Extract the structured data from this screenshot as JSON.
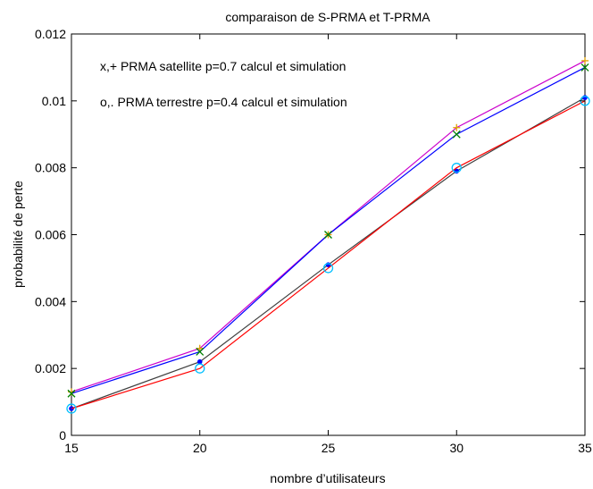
{
  "chart_data": {
    "type": "line",
    "title": "comparaison de S-PRMA et T-PRMA",
    "xlabel": "nombre d’utilisateurs",
    "ylabel": "probabilité de perte",
    "xlim": [
      15,
      35
    ],
    "ylim": [
      0,
      0.012
    ],
    "x_ticks": [
      15,
      20,
      25,
      30,
      35
    ],
    "x_tick_labels": [
      "15",
      "20",
      "25",
      "30",
      "35"
    ],
    "y_ticks": [
      0,
      0.002,
      0.004,
      0.006,
      0.008,
      0.01,
      0.012
    ],
    "y_tick_labels": [
      "0",
      "0.002",
      "0.004",
      "0.006",
      "0.008",
      "0.01",
      "0.012"
    ],
    "grid": false,
    "annotations": [
      "x,+ PRMA satellite p=0.7 calcul et simulation",
      "o,. PRMA terrestre p=0.4 calcul et simulation"
    ],
    "x": [
      15,
      20,
      25,
      30,
      35
    ],
    "series": [
      {
        "color": "#cc00cc",
        "marker": "+",
        "marker_color": "#e0a000",
        "values": [
          0.0013,
          0.0026,
          0.006,
          0.0092,
          0.0112
        ]
      },
      {
        "color": "#0000ff",
        "marker": "x",
        "marker_color": "#008000",
        "values": [
          0.00125,
          0.0025,
          0.006,
          0.009,
          0.011
        ]
      },
      {
        "color": "#404040",
        "marker": ".",
        "marker_color": "#0000ff",
        "values": [
          0.0008,
          0.0022,
          0.0051,
          0.0079,
          0.0101
        ]
      },
      {
        "color": "#ff0000",
        "marker": "o",
        "marker_color": "#00bfff",
        "values": [
          0.0008,
          0.002,
          0.005,
          0.008,
          0.01
        ]
      }
    ]
  }
}
